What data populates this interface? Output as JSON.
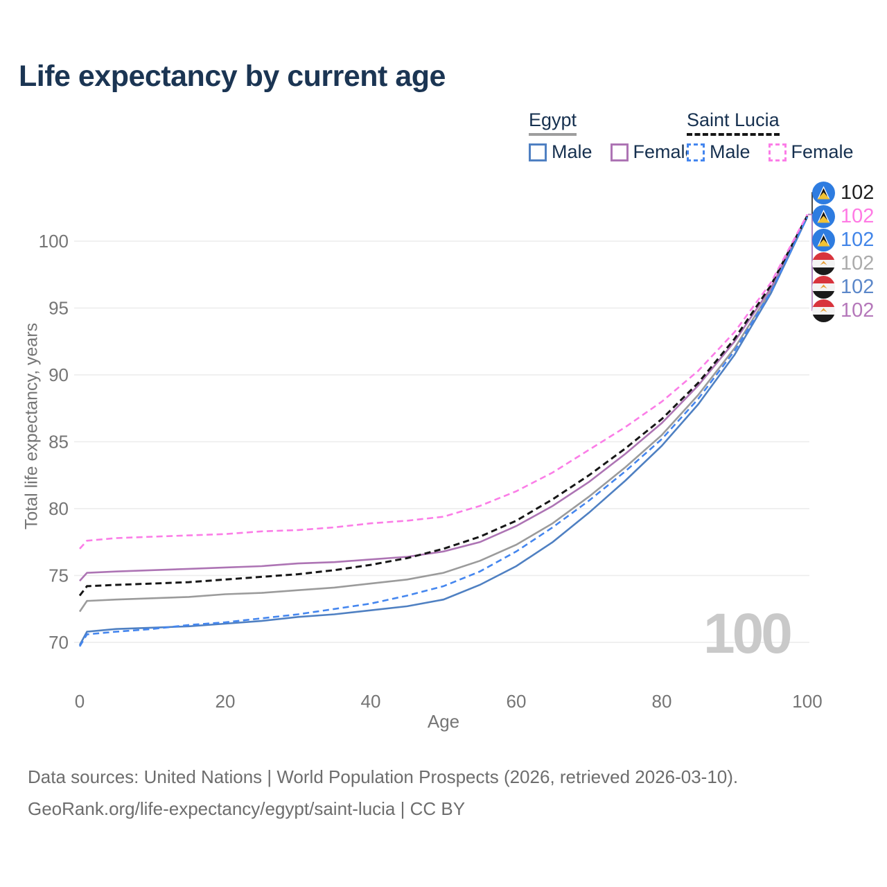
{
  "title": "Life expectancy by current age",
  "watermark": "100",
  "legend": {
    "groups": [
      {
        "label": "Egypt",
        "underline_color": "#9e9e9e",
        "underline_style": "solid",
        "items": [
          {
            "label": "Male",
            "color": "#4f80c2",
            "style": "solid"
          },
          {
            "label": "Female",
            "color": "#ad74b4",
            "style": "solid"
          }
        ]
      },
      {
        "label": "Saint Lucia",
        "underline_color": "#161616",
        "underline_style": "dashed",
        "items": [
          {
            "label": "Male",
            "color": "#4486ef",
            "style": "dashed"
          },
          {
            "label": "Female",
            "color": "#fb7de7",
            "style": "dashed"
          }
        ]
      }
    ]
  },
  "end_labels": [
    {
      "country": "saint-lucia",
      "series": "saint-lucia-all",
      "value": "102",
      "color": "#1f1f1f"
    },
    {
      "country": "saint-lucia",
      "series": "saint-lucia-female",
      "value": "102",
      "color": "#ff7ae4"
    },
    {
      "country": "saint-lucia",
      "series": "saint-lucia-male",
      "value": "102",
      "color": "#4285e8"
    },
    {
      "country": "egypt",
      "series": "egypt-all",
      "value": "102",
      "color": "#ababab"
    },
    {
      "country": "egypt",
      "series": "egypt-male",
      "value": "102",
      "color": "#5b87c9"
    },
    {
      "country": "egypt",
      "series": "egypt-female",
      "value": "102",
      "color": "#b578ba"
    }
  ],
  "footer": {
    "line1": "Data sources: United Nations | World Population Prospects (2026, retrieved 2026-03-10).",
    "line2": "GeoRank.org/life-expectancy/egypt/saint-lucia | CC BY"
  },
  "chart_data": {
    "type": "line",
    "title": "Life expectancy by current age",
    "xlabel": "Age",
    "ylabel": "Total life expectancy, years",
    "xlim": [
      0,
      100
    ],
    "ylim": [
      69,
      102.5
    ],
    "xticks": [
      0,
      20,
      40,
      60,
      80,
      100
    ],
    "yticks": [
      70,
      75,
      80,
      85,
      90,
      95,
      100
    ],
    "grid": "horizontal",
    "grid_color": "#ececec",
    "tick_color": "#757575",
    "x": [
      0,
      1,
      5,
      10,
      15,
      20,
      25,
      30,
      35,
      40,
      45,
      50,
      55,
      60,
      65,
      70,
      75,
      80,
      85,
      90,
      95,
      100
    ],
    "series": [
      {
        "key": "egypt-all",
        "name": "Egypt Both sexes",
        "country": "Egypt",
        "sex": "all",
        "color": "#9b9b9b",
        "dashed": false,
        "values": [
          72.3,
          73.1,
          73.2,
          73.3,
          73.4,
          73.6,
          73.7,
          73.9,
          74.1,
          74.4,
          74.7,
          75.2,
          76.1,
          77.3,
          78.9,
          80.9,
          83.1,
          85.5,
          88.5,
          92.0,
          96.3,
          101.8
        ]
      },
      {
        "key": "egypt-female",
        "name": "Egypt Female",
        "country": "Egypt",
        "sex": "female",
        "color": "#ad74b4",
        "dashed": false,
        "values": [
          74.6,
          75.2,
          75.3,
          75.4,
          75.5,
          75.6,
          75.7,
          75.9,
          76.0,
          76.2,
          76.4,
          76.8,
          77.5,
          78.7,
          80.2,
          82.0,
          84.1,
          86.4,
          89.2,
          92.5,
          96.5,
          101.9
        ]
      },
      {
        "key": "egypt-male",
        "name": "Egypt Male",
        "country": "Egypt",
        "sex": "male",
        "color": "#4f80c2",
        "dashed": false,
        "values": [
          69.8,
          70.8,
          71.0,
          71.1,
          71.2,
          71.4,
          71.6,
          71.9,
          72.1,
          72.4,
          72.7,
          73.2,
          74.3,
          75.7,
          77.5,
          79.7,
          82.1,
          84.7,
          87.8,
          91.5,
          96.1,
          101.8
        ]
      },
      {
        "key": "saint-lucia-all",
        "name": "Saint Lucia Both sexes",
        "country": "Saint Lucia",
        "sex": "all",
        "color": "#161616",
        "dashed": true,
        "values": [
          73.5,
          74.2,
          74.3,
          74.4,
          74.5,
          74.7,
          74.9,
          75.1,
          75.4,
          75.8,
          76.3,
          77.0,
          77.9,
          79.1,
          80.7,
          82.5,
          84.5,
          86.7,
          89.4,
          92.7,
          96.7,
          101.9
        ]
      },
      {
        "key": "saint-lucia-male",
        "name": "Saint Lucia Male",
        "country": "Saint Lucia",
        "sex": "male",
        "color": "#4486ef",
        "dashed": true,
        "values": [
          69.7,
          70.6,
          70.8,
          71.0,
          71.3,
          71.5,
          71.8,
          72.1,
          72.5,
          72.9,
          73.5,
          74.2,
          75.3,
          76.8,
          78.6,
          80.6,
          82.8,
          85.2,
          88.2,
          91.8,
          96.2,
          101.8
        ]
      },
      {
        "key": "saint-lucia-female",
        "name": "Saint Lucia Female",
        "country": "Saint Lucia",
        "sex": "female",
        "color": "#fb7de7",
        "dashed": true,
        "values": [
          77.0,
          77.6,
          77.8,
          77.9,
          78.0,
          78.1,
          78.3,
          78.4,
          78.6,
          78.9,
          79.1,
          79.4,
          80.2,
          81.3,
          82.7,
          84.4,
          86.1,
          88.0,
          90.3,
          93.2,
          96.9,
          102.0
        ]
      }
    ]
  }
}
